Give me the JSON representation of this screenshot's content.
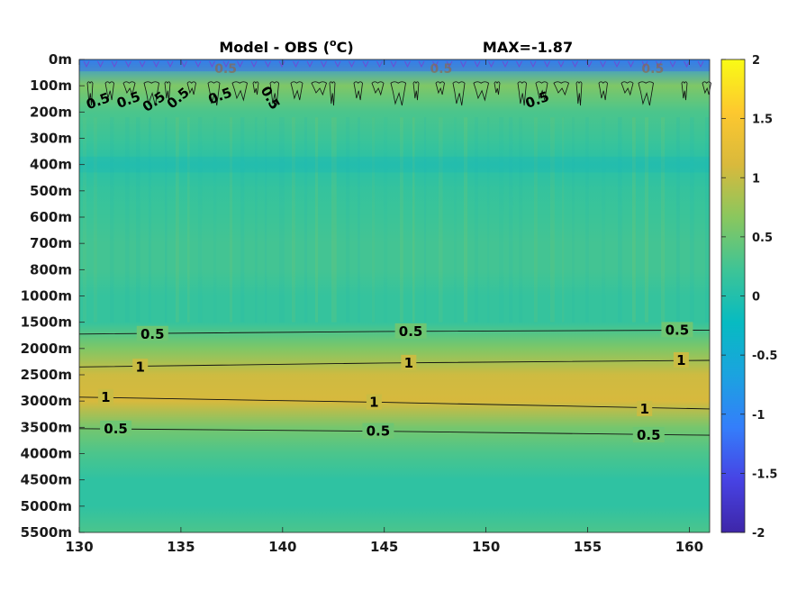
{
  "chart_data": {
    "type": "heatmap",
    "title": "Model - OBS (",
    "title_unit_sup": "o",
    "title_unit_tail": "C)",
    "max_label": "MAX=-1.87",
    "xlabel": "",
    "ylabel": "",
    "xlim": [
      130,
      161
    ],
    "x_ticks": [
      130,
      135,
      140,
      145,
      150,
      155,
      160
    ],
    "depth_ticks": [
      "0m",
      "100m",
      "200m",
      "300m",
      "400m",
      "500m",
      "600m",
      "700m",
      "800m",
      "1000m",
      "1500m",
      "2000m",
      "2500m",
      "3000m",
      "3500m",
      "4000m",
      "4500m",
      "5000m",
      "5500m"
    ],
    "depth_profile": [
      -0.9,
      0.6,
      0.3,
      0.2,
      0.05,
      0.15,
      0.2,
      0.25,
      0.25,
      0.15,
      0.15,
      0.6,
      1.05,
      1.1,
      0.55,
      0.3,
      0.1,
      0.1,
      0.3
    ],
    "colorbar": {
      "min": -2,
      "max": 2,
      "ticks": [
        "2",
        "1.5",
        "1",
        "0.5",
        "0",
        "-0.5",
        "-1",
        "-1.5",
        "-2"
      ],
      "tick_values": [
        2,
        1.5,
        1,
        0.5,
        0,
        -0.5,
        -1,
        -1.5,
        -2
      ]
    },
    "colormap": [
      "#3e26a8",
      "#4743e4",
      "#347efb",
      "#1ba3df",
      "#07bbc1",
      "#3ec496",
      "#8ac75e",
      "#d9b93c",
      "#fdc82f",
      "#f9fb15"
    ],
    "contours": [
      {
        "level": "0.5",
        "points": [
          [
            130,
            10.45
          ],
          [
            145,
            10.35
          ],
          [
            161,
            10.3
          ]
        ],
        "labels": [
          [
            133.6,
            10.45
          ],
          [
            146.3,
            10.35
          ],
          [
            159.4,
            10.3
          ]
        ]
      },
      {
        "level": "1",
        "points": [
          [
            130,
            11.7
          ],
          [
            145,
            11.55
          ],
          [
            161,
            11.45
          ]
        ],
        "labels": [
          [
            133,
            11.7
          ],
          [
            146.2,
            11.55
          ],
          [
            159.6,
            11.45
          ]
        ]
      },
      {
        "level": "1",
        "points": [
          [
            130,
            12.85
          ],
          [
            145,
            13.05
          ],
          [
            161,
            13.3
          ]
        ],
        "labels": [
          [
            131.3,
            12.85
          ],
          [
            144.5,
            13.05
          ],
          [
            157.8,
            13.3
          ]
        ]
      },
      {
        "level": "0.5",
        "points": [
          [
            130,
            14.05
          ],
          [
            145,
            14.15
          ],
          [
            161,
            14.3
          ]
        ],
        "labels": [
          [
            131.8,
            14.05
          ],
          [
            144.7,
            14.15
          ],
          [
            158,
            14.3
          ]
        ]
      }
    ],
    "upper_labels": [
      {
        "text": "0.5",
        "x": 131,
        "y": 1.75,
        "rot": -20
      },
      {
        "text": "0.5",
        "x": 132.5,
        "y": 1.7,
        "rot": -20
      },
      {
        "text": "0.5",
        "x": 133.8,
        "y": 1.75,
        "rot": -35
      },
      {
        "text": "0.5",
        "x": 135,
        "y": 1.6,
        "rot": -40
      },
      {
        "text": "0.5",
        "x": 137,
        "y": 1.55,
        "rot": -20
      },
      {
        "text": "0.5",
        "x": 139.2,
        "y": 1.55,
        "rot": 60
      },
      {
        "text": "0.5",
        "x": 152.6,
        "y": 1.7,
        "rot": -20
      }
    ],
    "surface_labels": [
      {
        "text": "0.5",
        "x": 137.2,
        "y": 0.35
      },
      {
        "text": "0.5",
        "x": 147.8,
        "y": 0.35
      },
      {
        "text": "0.5",
        "x": 158.2,
        "y": 0.35
      }
    ],
    "grid": false
  }
}
